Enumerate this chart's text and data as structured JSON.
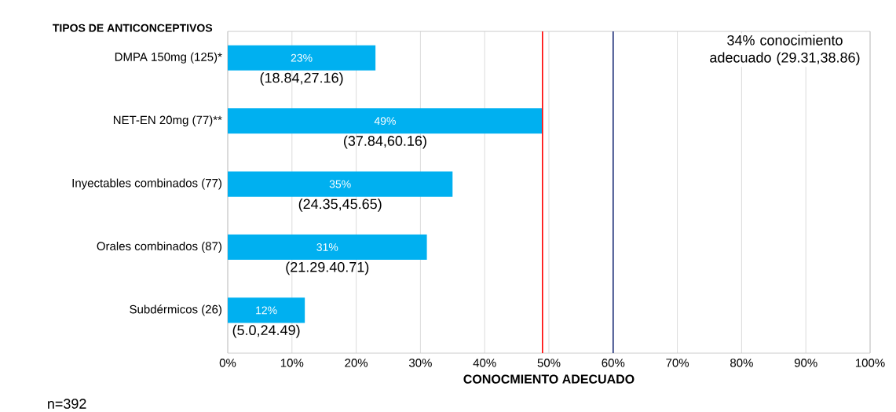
{
  "chart_data": {
    "type": "bar",
    "orientation": "horizontal",
    "ylabel": "TIPOS DE ANTICONCEPTIVOS",
    "xlabel": "CONOCMIENTO ADECUADO",
    "categories": [
      "DMPA 150mg (125)*",
      "NET-EN 20mg (77)**",
      "Inyectables combinados (77)",
      "Orales combinados (87)",
      "Subdérmicos  (26)"
    ],
    "values": [
      23,
      49,
      35,
      31,
      12
    ],
    "value_labels": [
      "23%",
      "49%",
      "35%",
      "31%",
      "12%"
    ],
    "color": "#00b0f0",
    "xlim": [
      0,
      100
    ],
    "xticks": [
      {
        "value": 0,
        "label": "0%"
      },
      {
        "value": 10,
        "label": "10%"
      },
      {
        "value": 20,
        "label": "20%"
      },
      {
        "value": 30,
        "label": "30%"
      },
      {
        "value": 40,
        "label": "40%"
      },
      {
        "value": 50,
        "label": "50%"
      },
      {
        "value": 60,
        "label": "60%"
      },
      {
        "value": 70,
        "label": "70%"
      },
      {
        "value": 80,
        "label": "80%"
      },
      {
        "value": 90,
        "label": "90%"
      },
      {
        "value": 100,
        "label": "100%"
      }
    ],
    "grid": "x",
    "ref_lines": [
      {
        "axis": "x",
        "value": 49,
        "color": "#ff0000"
      },
      {
        "axis": "x",
        "value": 60,
        "color": "#1f2f7a"
      }
    ],
    "annotations": [
      "(18.84,27.16)",
      "(37.84,60.16)",
      "(24.35,45.65)",
      "(21.29.40.71)",
      "(5.0,24.49)",
      "34% conocimiento adecuado (29.31,38.86)",
      "n=392"
    ]
  }
}
